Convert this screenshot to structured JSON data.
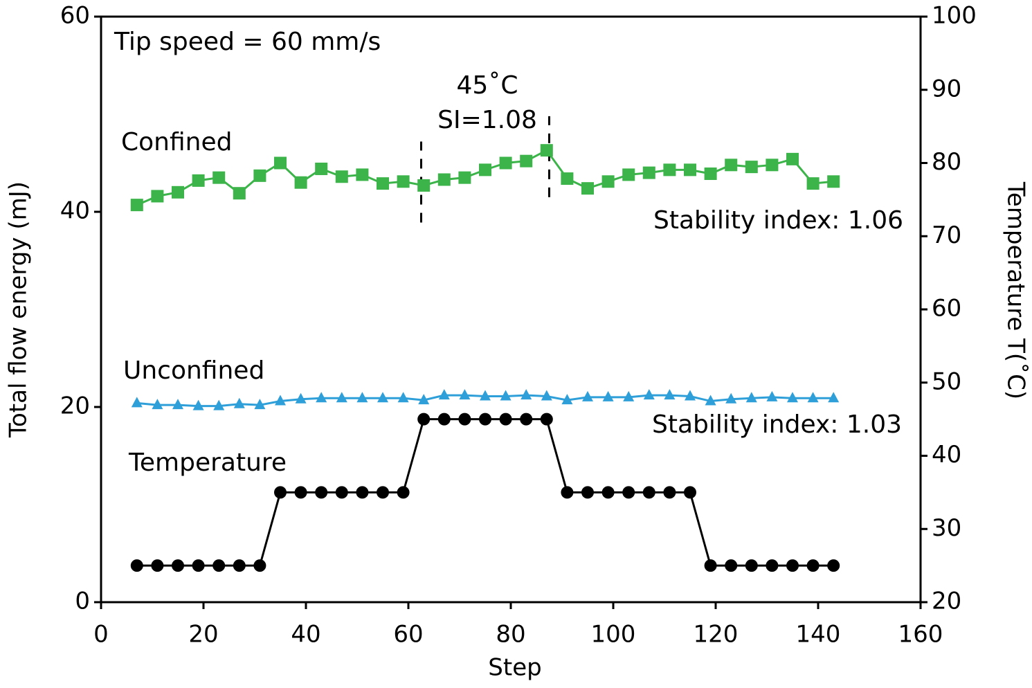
{
  "chart_data": {
    "type": "line",
    "x_label": "Step",
    "y_label": "Total flow energy (mJ)",
    "y2_label": "Temperature T(˚C)",
    "xlim": [
      0,
      160
    ],
    "xticks": [
      0,
      20,
      40,
      60,
      80,
      100,
      120,
      140,
      160
    ],
    "ylim": [
      0,
      60
    ],
    "yticks": [
      0,
      20,
      40,
      60
    ],
    "y2lim": [
      20,
      100
    ],
    "y2ticks": [
      20,
      30,
      40,
      50,
      60,
      70,
      80,
      90,
      100
    ],
    "x": [
      7,
      11,
      15,
      19,
      23,
      27,
      31,
      35,
      39,
      43,
      47,
      51,
      55,
      59,
      63,
      67,
      71,
      75,
      79,
      83,
      87,
      91,
      95,
      99,
      103,
      107,
      111,
      115,
      119,
      123,
      127,
      131,
      135,
      139,
      143
    ],
    "series": [
      {
        "name": "Confined",
        "color": "#3cb44a",
        "marker": "square",
        "values": [
          40.7,
          41.6,
          42.0,
          43.2,
          43.5,
          41.9,
          43.7,
          45.0,
          43.0,
          44.4,
          43.6,
          43.8,
          42.9,
          43.1,
          42.7,
          43.3,
          43.5,
          44.3,
          45.0,
          45.2,
          46.3,
          43.4,
          42.4,
          43.1,
          43.8,
          44.0,
          44.3,
          44.3,
          43.9,
          44.8,
          44.6,
          44.8,
          45.4,
          42.9,
          43.1
        ]
      },
      {
        "name": "Unconfined",
        "color": "#2e9fd8",
        "marker": "triangle",
        "values": [
          20.4,
          20.2,
          20.2,
          20.1,
          20.1,
          20.3,
          20.2,
          20.6,
          20.8,
          20.9,
          20.9,
          20.9,
          20.9,
          20.9,
          20.7,
          21.2,
          21.2,
          21.1,
          21.1,
          21.2,
          21.1,
          20.7,
          21.0,
          21.0,
          21.0,
          21.2,
          21.2,
          21.1,
          20.6,
          20.8,
          20.9,
          21.0,
          20.9,
          20.9,
          20.9
        ]
      },
      {
        "name": "Temperature",
        "color": "#000000",
        "marker": "circle",
        "axis": "y2",
        "values": [
          25,
          25,
          25,
          25,
          25,
          25,
          25,
          35,
          35,
          35,
          35,
          35,
          35,
          35,
          45,
          45,
          45,
          45,
          45,
          45,
          45,
          35,
          35,
          35,
          35,
          35,
          35,
          35,
          25,
          25,
          25,
          25,
          25,
          25,
          25
        ]
      }
    ],
    "annotations": [
      {
        "text": "Tip speed = 60 mm/s",
        "color": "#000000"
      },
      {
        "text": "45˚C",
        "color": "#3cb44a"
      },
      {
        "text": "SI=1.08",
        "color": "#3cb44a"
      },
      {
        "text": "Stability index: 1.06",
        "color": "#3cb44a"
      },
      {
        "text": "Stability index: 1.03",
        "color": "#2e9fd8"
      }
    ],
    "markers": [
      {
        "x": 62.5,
        "y": [
          38.9,
          47.2
        ]
      },
      {
        "x": 87.5,
        "y": [
          41.5,
          49.8
        ]
      }
    ]
  }
}
